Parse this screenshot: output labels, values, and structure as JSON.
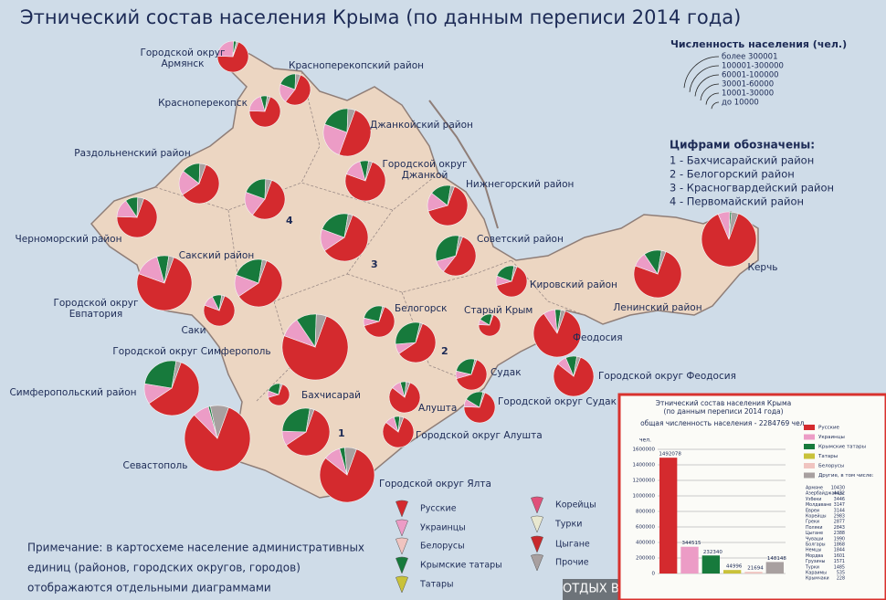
{
  "title": "Этнический состав населения Крыма (по данным переписи 2014 года)",
  "size_legend": {
    "title": "Численность населения (чел.)",
    "items": [
      "более 300001",
      "100001-300000",
      "60001-100000",
      "30001-60000",
      "10001-30000",
      "до 10000"
    ]
  },
  "number_legend": {
    "title": "Цифрами обозначены:",
    "items": [
      "1 - Бахчисарайский район",
      "2 - Белогорский район",
      "3 - Красногвардейский район",
      "4 - Первомайский район"
    ]
  },
  "map_numbers": [
    "1",
    "2",
    "3",
    "4"
  ],
  "legend": [
    {
      "name": "Русские",
      "color": "#d42a2e"
    },
    {
      "name": "Украинцы",
      "color": "#ec9cc6"
    },
    {
      "name": "Белорусы",
      "color": "#f0c4c0"
    },
    {
      "name": "Крымские татары",
      "color": "#177a3c"
    },
    {
      "name": "Татары",
      "color": "#c9c23a"
    },
    {
      "name": "Корейцы",
      "color": "#e0507a"
    },
    {
      "name": "Турки",
      "color": "#e8e8d0"
    },
    {
      "name": "Цыгане",
      "color": "#c8282c"
    },
    {
      "name": "Прочие",
      "color": "#a8a0a0"
    }
  ],
  "regions": [
    {
      "name": [
        "Городской округ",
        "Армянск"
      ],
      "size_class": 4,
      "shares": [
        70,
        25,
        3,
        2
      ]
    },
    {
      "name": [
        "Красноперекопский район"
      ],
      "size_class": 4,
      "shares": [
        55,
        20,
        20,
        5
      ]
    },
    {
      "name": [
        "Красноперекопск"
      ],
      "size_class": 4,
      "shares": [
        70,
        20,
        7,
        3
      ]
    },
    {
      "name": [
        "Джанкойский район"
      ],
      "size_class": 2,
      "shares": [
        50,
        25,
        20,
        5
      ]
    },
    {
      "name": [
        "Раздольненский район"
      ],
      "size_class": 3,
      "shares": [
        60,
        20,
        15,
        5
      ]
    },
    {
      "name": [
        "Городской округ",
        "Джанкой"
      ],
      "size_class": 3,
      "shares": [
        75,
        15,
        7,
        3
      ]
    },
    {
      "name": [
        "Нижнегорский район"
      ],
      "size_class": 3,
      "shares": [
        65,
        15,
        17,
        3
      ]
    },
    {
      "name": [
        "Черноморский район"
      ],
      "size_class": 3,
      "shares": [
        70,
        15,
        10,
        5
      ]
    },
    {
      "name": null,
      "size_class": 3,
      "shares": [
        55,
        20,
        20,
        5
      ]
    },
    {
      "name": null,
      "size_class": 2,
      "shares": [
        60,
        15,
        22,
        3
      ]
    },
    {
      "name": [
        "Советский район"
      ],
      "size_class": 3,
      "shares": [
        55,
        10,
        32,
        3
      ]
    },
    {
      "name": [
        "Сакский район"
      ],
      "size_class": 2,
      "shares": [
        60,
        15,
        22,
        3
      ]
    },
    {
      "name": [
        "Городской округ",
        "Евпатория"
      ],
      "size_class": 1,
      "shares": [
        75,
        15,
        7,
        3
      ]
    },
    {
      "name": [
        "Кировский район"
      ],
      "size_class": 4,
      "shares": [
        65,
        10,
        22,
        3
      ]
    },
    {
      "name": [
        "Керчь"
      ],
      "size_class": 1,
      "shares": [
        88,
        7,
        1,
        4
      ]
    },
    {
      "name": [
        "Ленинский район"
      ],
      "size_class": 2,
      "shares": [
        75,
        10,
        12,
        3
      ]
    },
    {
      "name": [
        "Саки"
      ],
      "size_class": 4,
      "shares": [
        75,
        12,
        10,
        3
      ]
    },
    {
      "name": null,
      "size_class": 3,
      "shares": [
        60,
        8,
        30,
        2
      ]
    },
    {
      "name": [
        "Белогорск"
      ],
      "size_class": 4,
      "shares": [
        65,
        8,
        25,
        2
      ]
    },
    {
      "name": [
        "Старый Крым"
      ],
      "size_class": 5,
      "shares": [
        70,
        8,
        20,
        2
      ]
    },
    {
      "name": [
        "Феодосия"
      ],
      "size_class": 2,
      "shares": [
        85,
        8,
        4,
        3
      ]
    },
    {
      "name": [
        "Городской округ Симферополь"
      ],
      "size_class": 0,
      "shares": [
        75,
        10,
        10,
        5
      ]
    },
    {
      "name": [
        "Симферопольский район"
      ],
      "size_class": 1,
      "shares": [
        60,
        12,
        25,
        3
      ]
    },
    {
      "name": [
        "Городской округ Феодосия"
      ],
      "size_class": 3,
      "shares": [
        80,
        8,
        9,
        3
      ]
    },
    {
      "name": [
        "Судак"
      ],
      "size_class": 4,
      "shares": [
        65,
        8,
        25,
        2
      ]
    },
    {
      "name": null,
      "size_class": 2,
      "shares": [
        60,
        10,
        27,
        3
      ]
    },
    {
      "name": [
        "Алушта"
      ],
      "size_class": 4,
      "shares": [
        80,
        10,
        6,
        4
      ]
    },
    {
      "name": [
        "Городской округ Судак"
      ],
      "size_class": 4,
      "shares": [
        70,
        8,
        20,
        2
      ]
    },
    {
      "name": [
        "Бахчисарай"
      ],
      "size_class": 5,
      "shares": [
        65,
        10,
        22,
        3
      ]
    },
    {
      "name": [
        "Городской округ Алушта"
      ],
      "size_class": 4,
      "shares": [
        80,
        10,
        6,
        4
      ]
    },
    {
      "name": [
        "Севастополь"
      ],
      "size_class": 0,
      "shares": [
        82,
        8,
        1,
        9
      ]
    },
    {
      "name": [
        "Городской округ Ялта"
      ],
      "size_class": 1,
      "shares": [
        80,
        10,
        3,
        7
      ]
    }
  ],
  "note": [
    "Примечание: в картосхеме население административных",
    "единиц (районов, городских округов, городов)",
    "отображаются отдельными диаграммами"
  ],
  "watermark": "ОТДЫХ В КРЫМУ WWW.CRIMEASEARCH.COM",
  "inset": {
    "type": "bar",
    "title": [
      "Этнический состав населения Крыма",
      "(по данным переписи 2014 года)"
    ],
    "subtitle": "общая численность населения - 2284769 чел.",
    "ylabel": "чел.",
    "ylim": [
      0,
      1600000
    ],
    "yticks": [
      0,
      200000,
      400000,
      600000,
      800000,
      1000000,
      1200000,
      1400000,
      1600000
    ],
    "categories": [
      "Русские",
      "Украинцы",
      "Крымские татары",
      "Татары",
      "Белорусы",
      "Другие, в том числе:"
    ],
    "colors": [
      "#d42a2e",
      "#ec9cc6",
      "#177a3c",
      "#c9c23a",
      "#f0c4c0",
      "#a8a0a0"
    ],
    "values": [
      1492078,
      344515,
      232340,
      44996,
      21694,
      148148
    ],
    "others": [
      {
        "name": "Армяне",
        "value": 10430
      },
      {
        "name": "Азербайджанцы",
        "value": 4432
      },
      {
        "name": "Узбеки",
        "value": 3446
      },
      {
        "name": "Молдаване",
        "value": 3147
      },
      {
        "name": "Евреи",
        "value": 3144
      },
      {
        "name": "Корейцы",
        "value": 2983
      },
      {
        "name": "Греки",
        "value": 2877
      },
      {
        "name": "Поляки",
        "value": 2843
      },
      {
        "name": "Цыгане",
        "value": 2388
      },
      {
        "name": "Чуваши",
        "value": 1990
      },
      {
        "name": "Болгары",
        "value": 1868
      },
      {
        "name": "Немцы",
        "value": 1844
      },
      {
        "name": "Мордва",
        "value": 1601
      },
      {
        "name": "Грузины",
        "value": 1571
      },
      {
        "name": "Турки",
        "value": 1485
      },
      {
        "name": "Караимы",
        "value": 535
      },
      {
        "name": "Крымчаки",
        "value": 228
      }
    ]
  }
}
